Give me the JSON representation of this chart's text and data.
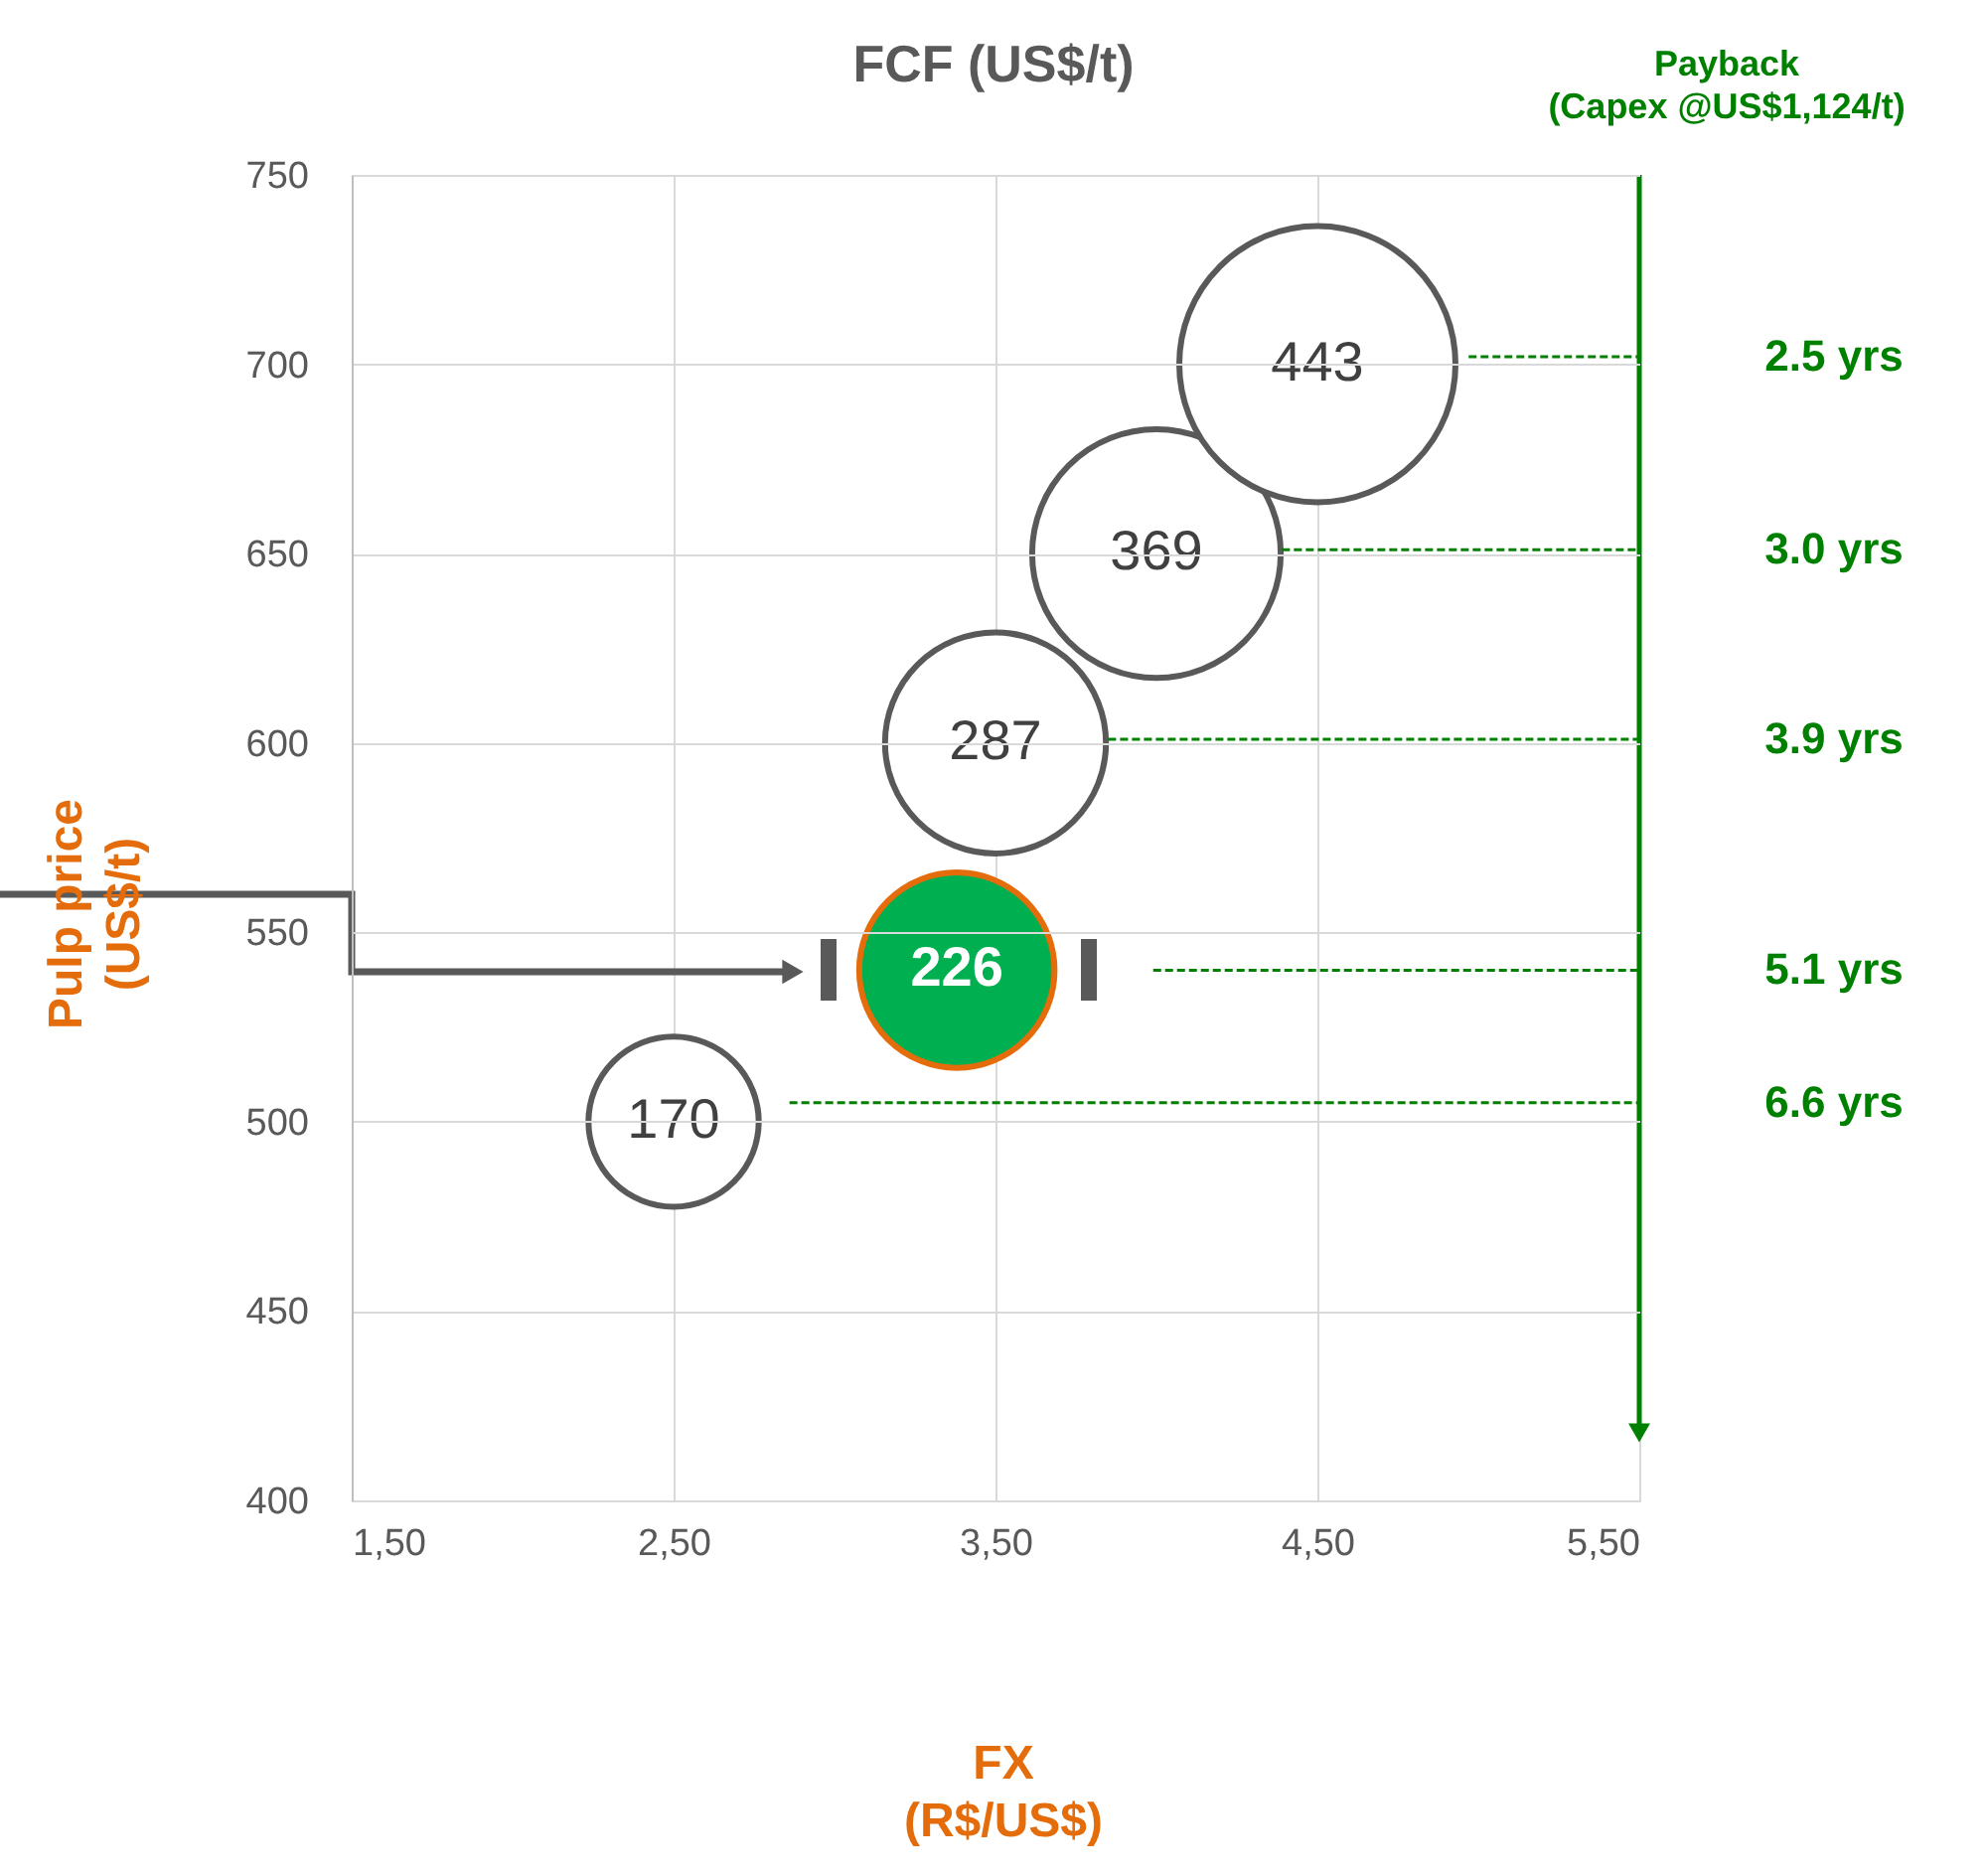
{
  "chart_data": {
    "type": "bubble",
    "title": "FCF (US$/t)",
    "xlabel": "FX\n(R$/US$)",
    "ylabel": "Pulp price\n(US$/t)",
    "xlim": [
      1.5,
      5.5
    ],
    "ylim": [
      400,
      750
    ],
    "xticks": [
      {
        "value": 1.5,
        "label": "1,50"
      },
      {
        "value": 2.5,
        "label": "2,50"
      },
      {
        "value": 3.5,
        "label": "3,50"
      },
      {
        "value": 4.5,
        "label": "4,50"
      },
      {
        "value": 5.5,
        "label": "5,50"
      }
    ],
    "yticks": [
      400,
      450,
      500,
      550,
      600,
      650,
      700,
      750
    ],
    "grid": true,
    "line_style": "dashed",
    "series": [
      {
        "x": [
          2.5,
          3.38,
          3.5,
          4.0,
          4.5
        ],
        "values": [
          500,
          540,
          600,
          650,
          700
        ],
        "sizes": [
          0.38,
          0.5,
          0.64,
          0.81,
          1
        ],
        "colors": [
          "#ffffff",
          "#00b050",
          "#ffffff",
          "#ffffff",
          "#ffffff"
        ]
      },
      {
        "type": "line",
        "color": "#008000",
        "x": [
          4.97,
          5.5
        ],
        "values": [
          702,
          702
        ]
      },
      {
        "type": "line",
        "color": "#008000",
        "x": [
          4.39,
          5.5
        ],
        "values": [
          651,
          651
        ]
      },
      {
        "type": "line",
        "color": "#008000",
        "x": [
          3.85,
          5.5
        ],
        "values": [
          601,
          601
        ]
      },
      {
        "type": "line",
        "color": "#008000",
        "x": [
          3.99,
          5.5
        ],
        "values": [
          540,
          540
        ]
      },
      {
        "type": "line",
        "color": "#008000",
        "x": [
          2.86,
          5.5
        ],
        "values": [
          505,
          505
        ]
      }
    ],
    "annotations": [
      "Payback\n(Capex @US$1,124/t)",
      "2.5 yrs",
      "3.0 yrs",
      "3.9 yrs",
      "5.1 yrs",
      "6.6 yrs",
      {
        "text": "170",
        "x": 2.5,
        "y": 500
      },
      {
        "text": "226",
        "x": 3.38,
        "y": 540
      },
      {
        "text": "287",
        "x": 3.5,
        "y": 600
      },
      {
        "text": "369",
        "x": 4.0,
        "y": 650
      },
      {
        "text": "443",
        "x": 4.5,
        "y": 700
      }
    ]
  }
}
